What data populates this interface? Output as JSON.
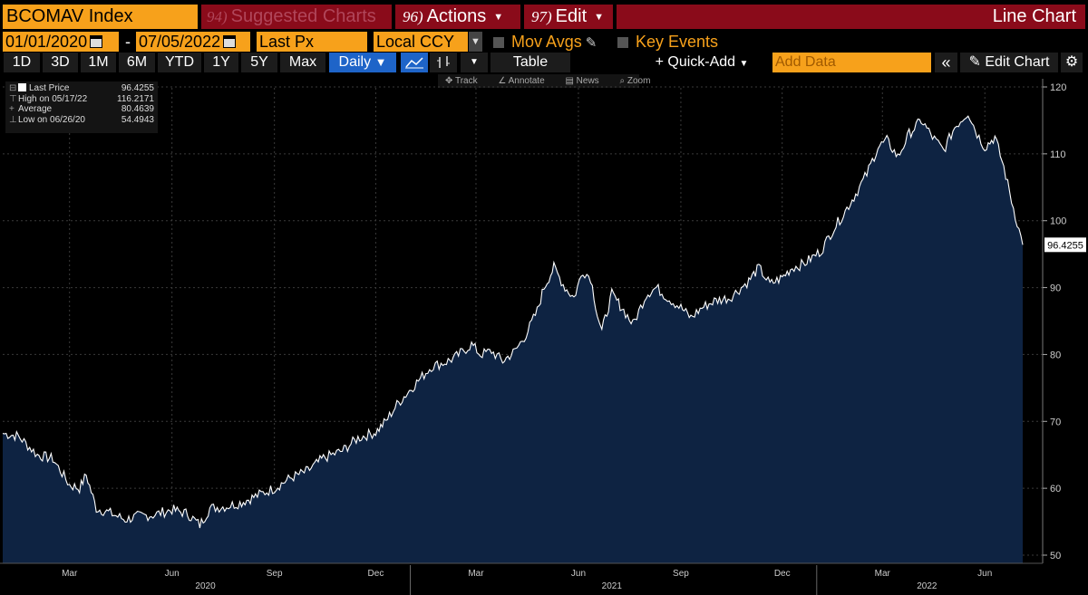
{
  "header": {
    "ticker": "BCOMAV Index",
    "suggested_num": "94)",
    "suggested_label": "Suggested Charts",
    "actions_num": "96)",
    "actions_label": "Actions",
    "edit_num": "97)",
    "edit_label": "Edit",
    "chart_type": "Line Chart"
  },
  "controls": {
    "start_date": "01/01/2020",
    "dash": "-",
    "end_date": "07/05/2022",
    "field": "Last Px",
    "currency": "Local CCY",
    "mov_avgs": "Mov Avgs",
    "key_events": "Key Events"
  },
  "periods": [
    "1D",
    "3D",
    "1M",
    "6M",
    "YTD",
    "1Y",
    "5Y",
    "Max"
  ],
  "frequency": "Daily",
  "toolbar": {
    "table": "Table",
    "quick_add": "+ Quick-Add",
    "add_data_placeholder": "Add Data",
    "edit_chart": "Edit Chart",
    "track": "Track",
    "annotate": "Annotate",
    "news": "News",
    "zoom": "Zoom"
  },
  "legend": {
    "rows": [
      {
        "label": "Last Price",
        "value": "96.4255"
      },
      {
        "label": "High on 05/17/22",
        "value": "116.2171"
      },
      {
        "label": "Average",
        "value": "80.4639"
      },
      {
        "label": "Low on 06/26/20",
        "value": "54.4943"
      }
    ]
  },
  "colors": {
    "orange": "#f7a11b",
    "maroon": "#8a0b1a",
    "area_fill": "#0e2342",
    "line": "#ffffff",
    "selected_button": "#1e64c8"
  },
  "chart_data": {
    "type": "area",
    "start_date": "2020-01-01",
    "end_date": "2022-07-05",
    "ylim": [
      49,
      122
    ],
    "y_ticks": [
      50,
      60,
      70,
      80,
      90,
      100,
      110,
      120
    ],
    "month_ticks": [
      "Mar",
      "Jun",
      "Sep",
      "Dec",
      "Mar",
      "Jun",
      "Sep",
      "Dec",
      "Mar",
      "Jun"
    ],
    "month_tick_dates": [
      "2020-03-01",
      "2020-06-01",
      "2020-09-01",
      "2020-12-01",
      "2021-03-01",
      "2021-06-01",
      "2021-09-01",
      "2021-12-01",
      "2022-03-01",
      "2022-06-01"
    ],
    "year_labels": [
      {
        "label": "2020",
        "date": "2020-07-01"
      },
      {
        "label": "2021",
        "date": "2021-07-01"
      },
      {
        "label": "2022",
        "date": "2022-04-10"
      }
    ],
    "last_value_label": "96.4255",
    "points": [
      [
        "2020-01-01",
        68.2
      ],
      [
        "2020-01-15",
        67.8
      ],
      [
        "2020-02-01",
        65.0
      ],
      [
        "2020-02-15",
        64.4
      ],
      [
        "2020-03-01",
        60.5
      ],
      [
        "2020-03-10",
        60.0
      ],
      [
        "2020-03-16",
        62.0
      ],
      [
        "2020-03-25",
        57.0
      ],
      [
        "2020-04-05",
        56.4
      ],
      [
        "2020-04-20",
        55.3
      ],
      [
        "2020-05-01",
        55.8
      ],
      [
        "2020-05-15",
        56.0
      ],
      [
        "2020-06-01",
        56.8
      ],
      [
        "2020-06-15",
        56.2
      ],
      [
        "2020-06-26",
        54.5
      ],
      [
        "2020-07-05",
        57.0
      ],
      [
        "2020-07-20",
        57.3
      ],
      [
        "2020-08-01",
        57.8
      ],
      [
        "2020-08-15",
        58.8
      ],
      [
        "2020-09-01",
        60.0
      ],
      [
        "2020-09-15",
        61.5
      ],
      [
        "2020-10-01",
        62.6
      ],
      [
        "2020-10-15",
        64.5
      ],
      [
        "2020-11-01",
        65.6
      ],
      [
        "2020-11-15",
        67.5
      ],
      [
        "2020-12-01",
        68.4
      ],
      [
        "2020-12-10",
        70.0
      ],
      [
        "2020-12-20",
        72.5
      ],
      [
        "2021-01-05",
        75.5
      ],
      [
        "2021-01-20",
        78.2
      ],
      [
        "2021-02-01",
        78.8
      ],
      [
        "2021-02-10",
        79.5
      ],
      [
        "2021-02-25",
        81.5
      ],
      [
        "2021-03-05",
        80.0
      ],
      [
        "2021-03-15",
        80.5
      ],
      [
        "2021-03-25",
        79.0
      ],
      [
        "2021-04-05",
        80.5
      ],
      [
        "2021-04-15",
        83.0
      ],
      [
        "2021-04-25",
        86.5
      ],
      [
        "2021-05-01",
        90.0
      ],
      [
        "2021-05-10",
        93.0
      ],
      [
        "2021-05-20",
        90.0
      ],
      [
        "2021-05-28",
        88.5
      ],
      [
        "2021-06-05",
        92.5
      ],
      [
        "2021-06-12",
        91.5
      ],
      [
        "2021-06-18",
        86.0
      ],
      [
        "2021-06-22",
        83.5
      ],
      [
        "2021-07-01",
        89.0
      ],
      [
        "2021-07-10",
        87.0
      ],
      [
        "2021-07-20",
        84.5
      ],
      [
        "2021-08-01",
        89.0
      ],
      [
        "2021-08-10",
        90.0
      ],
      [
        "2021-08-20",
        88.5
      ],
      [
        "2021-09-01",
        87.0
      ],
      [
        "2021-09-10",
        85.5
      ],
      [
        "2021-09-20",
        87.0
      ],
      [
        "2021-10-01",
        88.0
      ],
      [
        "2021-10-15",
        88.5
      ],
      [
        "2021-11-01",
        91.0
      ],
      [
        "2021-11-10",
        93.0
      ],
      [
        "2021-11-20",
        90.5
      ],
      [
        "2021-12-01",
        91.5
      ],
      [
        "2021-12-10",
        93.0
      ],
      [
        "2021-12-20",
        93.5
      ],
      [
        "2022-01-05",
        95.5
      ],
      [
        "2022-01-15",
        98.5
      ],
      [
        "2022-01-25",
        101.0
      ],
      [
        "2022-02-05",
        104.0
      ],
      [
        "2022-02-15",
        107.0
      ],
      [
        "2022-02-25",
        111.0
      ],
      [
        "2022-03-05",
        112.0
      ],
      [
        "2022-03-15",
        109.5
      ],
      [
        "2022-03-25",
        113.0
      ],
      [
        "2022-04-05",
        115.0
      ],
      [
        "2022-04-15",
        112.5
      ],
      [
        "2022-04-25",
        110.5
      ],
      [
        "2022-05-05",
        114.0
      ],
      [
        "2022-05-17",
        116.2
      ],
      [
        "2022-05-25",
        113.0
      ],
      [
        "2022-06-01",
        111.0
      ],
      [
        "2022-06-10",
        112.5
      ],
      [
        "2022-06-18",
        108.0
      ],
      [
        "2022-06-25",
        103.0
      ],
      [
        "2022-07-05",
        96.4
      ]
    ]
  }
}
